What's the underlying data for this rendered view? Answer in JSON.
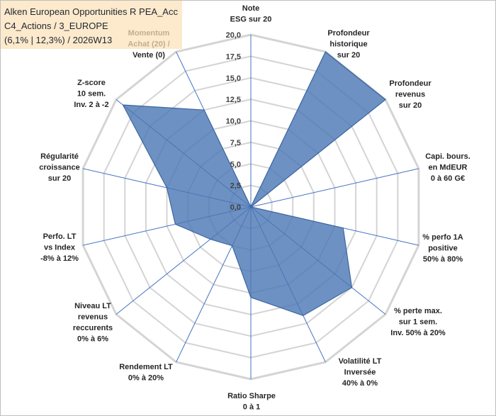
{
  "chart_data": {
    "type": "radar",
    "title": [
      "Alken European Opportunities R PEA_Acc",
      "C4_Actions / 3_EUROPE",
      "(6,1% | 12,3%) / 2026W13"
    ],
    "categories": [
      [
        "Note",
        "ESG sur 20"
      ],
      [
        "Profondeur",
        "historique",
        "sur 20"
      ],
      [
        "Profondeur",
        "revenus",
        "sur 20"
      ],
      [
        "Capi. bours.",
        "en MdEUR",
        "0 à 60 G€"
      ],
      [
        "% perfo 1A",
        "positive",
        "50% à 80%"
      ],
      [
        "% perte max.",
        "sur 1 sem.",
        "Inv. 50% à 20%"
      ],
      [
        "Volatilité LT",
        "Inversée",
        "40% à 0%"
      ],
      [
        "Ratio Sharpe",
        "0 à 1"
      ],
      [
        "Rendement LT",
        "0% à 20%"
      ],
      [
        "Niveau LT",
        "revenus",
        "reccurents",
        "0% à 6%"
      ],
      [
        "Perfo. LT",
        "vs Index",
        "-8% à 12%"
      ],
      [
        "Régularité",
        "croissance",
        "sur 20"
      ],
      [
        "Z-score",
        "10 sem.",
        "Inv. 2 à -2"
      ],
      [
        "Momentum",
        "Achat (20) /",
        "Vente (0)"
      ]
    ],
    "series": [
      {
        "values": [
          0,
          20,
          20,
          0,
          11,
          15,
          14,
          10.5,
          5,
          6,
          9,
          10,
          19,
          12.5
        ]
      }
    ],
    "r_ticks": [
      0,
      2.5,
      5,
      7.5,
      10,
      12.5,
      15,
      17.5,
      20
    ],
    "tick_labels": [
      "0,0",
      "2,5",
      "5,0",
      "7,5",
      "10,0",
      "12,5",
      "15,0",
      "17,5",
      "20,0"
    ],
    "rlim": [
      0,
      20
    ],
    "grid": true,
    "legend": "none",
    "colors": {
      "area": "#4a76b4",
      "area_stroke": "#3d679f",
      "spokes": "#4472c4",
      "grid": "#d4d4d4"
    }
  }
}
